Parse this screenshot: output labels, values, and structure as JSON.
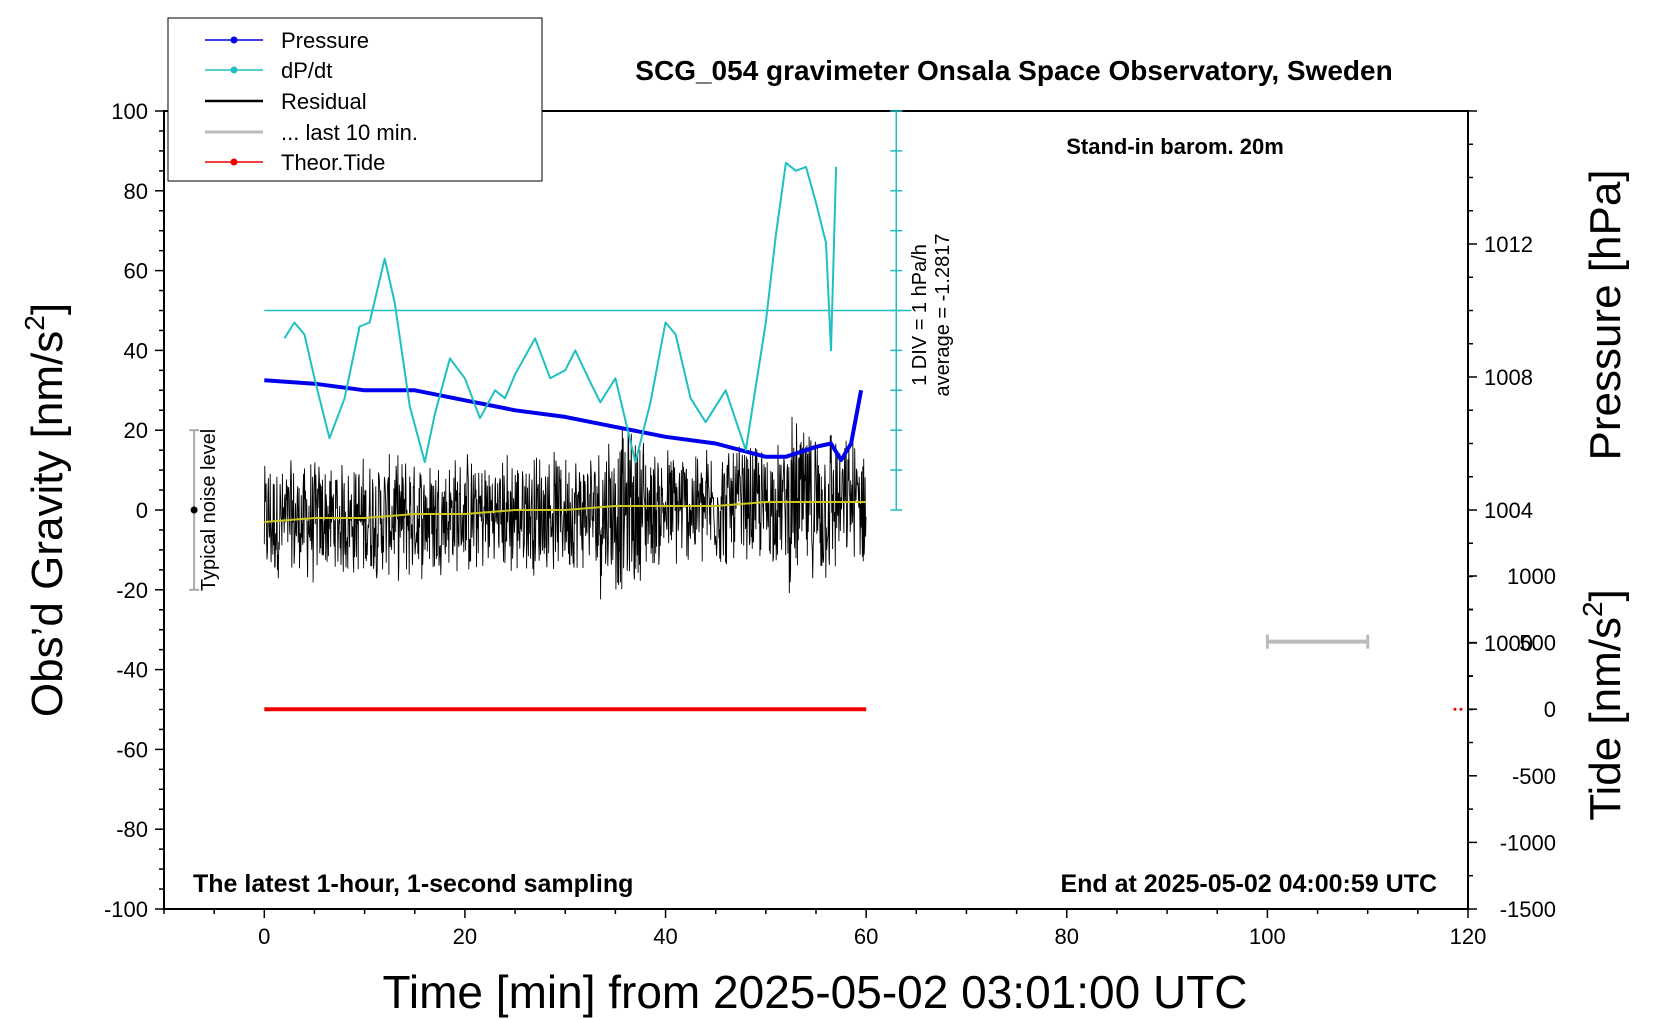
{
  "chart_data": {
    "type": "line",
    "title": "SCG_054 gravimeter Onsala Space Observatory, Sweden",
    "xlabel": "Time [min] from 2025-05-02 03:01:00 UTC",
    "ylabel": "Obs’d Gravity [nm/s",
    "ylabel_sup": "2",
    "ylabel_close": "]",
    "y2label": "Pressure [hPa]",
    "y3label": "Tide [nm/s",
    "y3label_sup": "2",
    "y3label_close": "]",
    "xlim": [
      -10,
      120
    ],
    "ylim": [
      -100,
      100
    ],
    "pressure_lim": [
      992,
      1016
    ],
    "tide_lim": [
      -1500,
      1000
    ],
    "x_ticks": [
      "0",
      "20",
      "40",
      "60",
      "80",
      "100",
      "120"
    ],
    "y_ticks": [
      "-100",
      "-80",
      "-60",
      "-40",
      "-20",
      "0",
      "20",
      "40",
      "60",
      "80",
      "100"
    ],
    "pressure_ticks": [
      "1000",
      "1004",
      "1008",
      "1012"
    ],
    "tide_ticks": [
      "-1500",
      "-1000",
      "-500",
      "0",
      "500",
      "1000"
    ],
    "legend": {
      "position": "top-left",
      "entries": [
        {
          "label": "Pressure",
          "color": "#0000ee",
          "marker": true
        },
        {
          "label": "dP/dt",
          "color": "#20c0c0",
          "marker": true
        },
        {
          "label": "Residual",
          "color": "#000000",
          "marker": false
        },
        {
          "label": "... last 10 min.",
          "color": "#bbbbbb",
          "marker": false
        },
        {
          "label": "Theor.Tide",
          "color": "#ee0000",
          "marker": true
        }
      ]
    },
    "annotations": {
      "barometer": "Stand-in barom. 20m",
      "sampling": "The latest 1-hour, 1-second sampling",
      "end_time": "End at 2025-05-02 04:00:59 UTC",
      "noise_level": "Typical noise level",
      "dpdt_scale": "1 DIV = 1 hPa/h",
      "dpdt_average": "average = -1.2817"
    },
    "noise_level_range": [
      -20,
      20
    ],
    "dpdt_reference_level": 50,
    "dpdt_axis_range": [
      0,
      100
    ],
    "last10_marker": {
      "x": [
        100,
        110
      ],
      "y": -33
    },
    "series": [
      {
        "name": "Pressure",
        "axis": "pressure",
        "color": "#0000ee",
        "x": [
          0,
          5,
          10,
          15,
          20,
          25,
          30,
          35,
          40,
          45,
          50,
          52,
          55,
          56.5,
          57.5,
          58.5,
          59.5
        ],
        "values": [
          1007.9,
          1007.8,
          1007.6,
          1007.6,
          1007.3,
          1007.0,
          1006.8,
          1006.5,
          1006.2,
          1006.0,
          1005.6,
          1005.6,
          1005.9,
          1006.0,
          1005.5,
          1006.0,
          1007.6
        ]
      },
      {
        "name": "dP/dt",
        "axis": "gravity",
        "color": "#20c0c0",
        "x": [
          2,
          3,
          4,
          5,
          6.5,
          8,
          9.5,
          10.5,
          12,
          13,
          14.5,
          16,
          17,
          18.5,
          20,
          21.5,
          23,
          24,
          25,
          27,
          28.5,
          30,
          31,
          32.5,
          33.5,
          35,
          37,
          38.5,
          40,
          41,
          42.5,
          44,
          46,
          48,
          50,
          51,
          52,
          53,
          54,
          55,
          56,
          56.5,
          57
        ],
        "values": [
          43,
          47,
          44,
          33,
          18,
          28,
          46,
          47,
          63,
          52,
          26,
          12,
          24,
          38,
          33,
          23,
          30,
          28,
          34,
          43,
          33,
          35,
          40,
          32,
          27,
          33,
          12,
          27,
          47,
          44,
          28,
          22,
          30,
          15,
          47,
          69,
          87,
          85,
          86,
          77,
          67,
          40,
          86
        ]
      },
      {
        "name": "Residual mean",
        "axis": "gravity",
        "color": "#c8c820",
        "x": [
          0,
          5,
          10,
          15,
          20,
          25,
          30,
          35,
          40,
          45,
          50,
          55,
          60
        ],
        "values": [
          -3,
          -2,
          -2,
          -1,
          -1,
          0,
          0,
          1,
          1,
          1,
          2,
          2,
          2
        ]
      },
      {
        "name": "Theor.Tide",
        "axis": "tide",
        "color": "#ee0000",
        "x": [
          0,
          60
        ],
        "values": [
          0,
          0
        ]
      }
    ]
  }
}
